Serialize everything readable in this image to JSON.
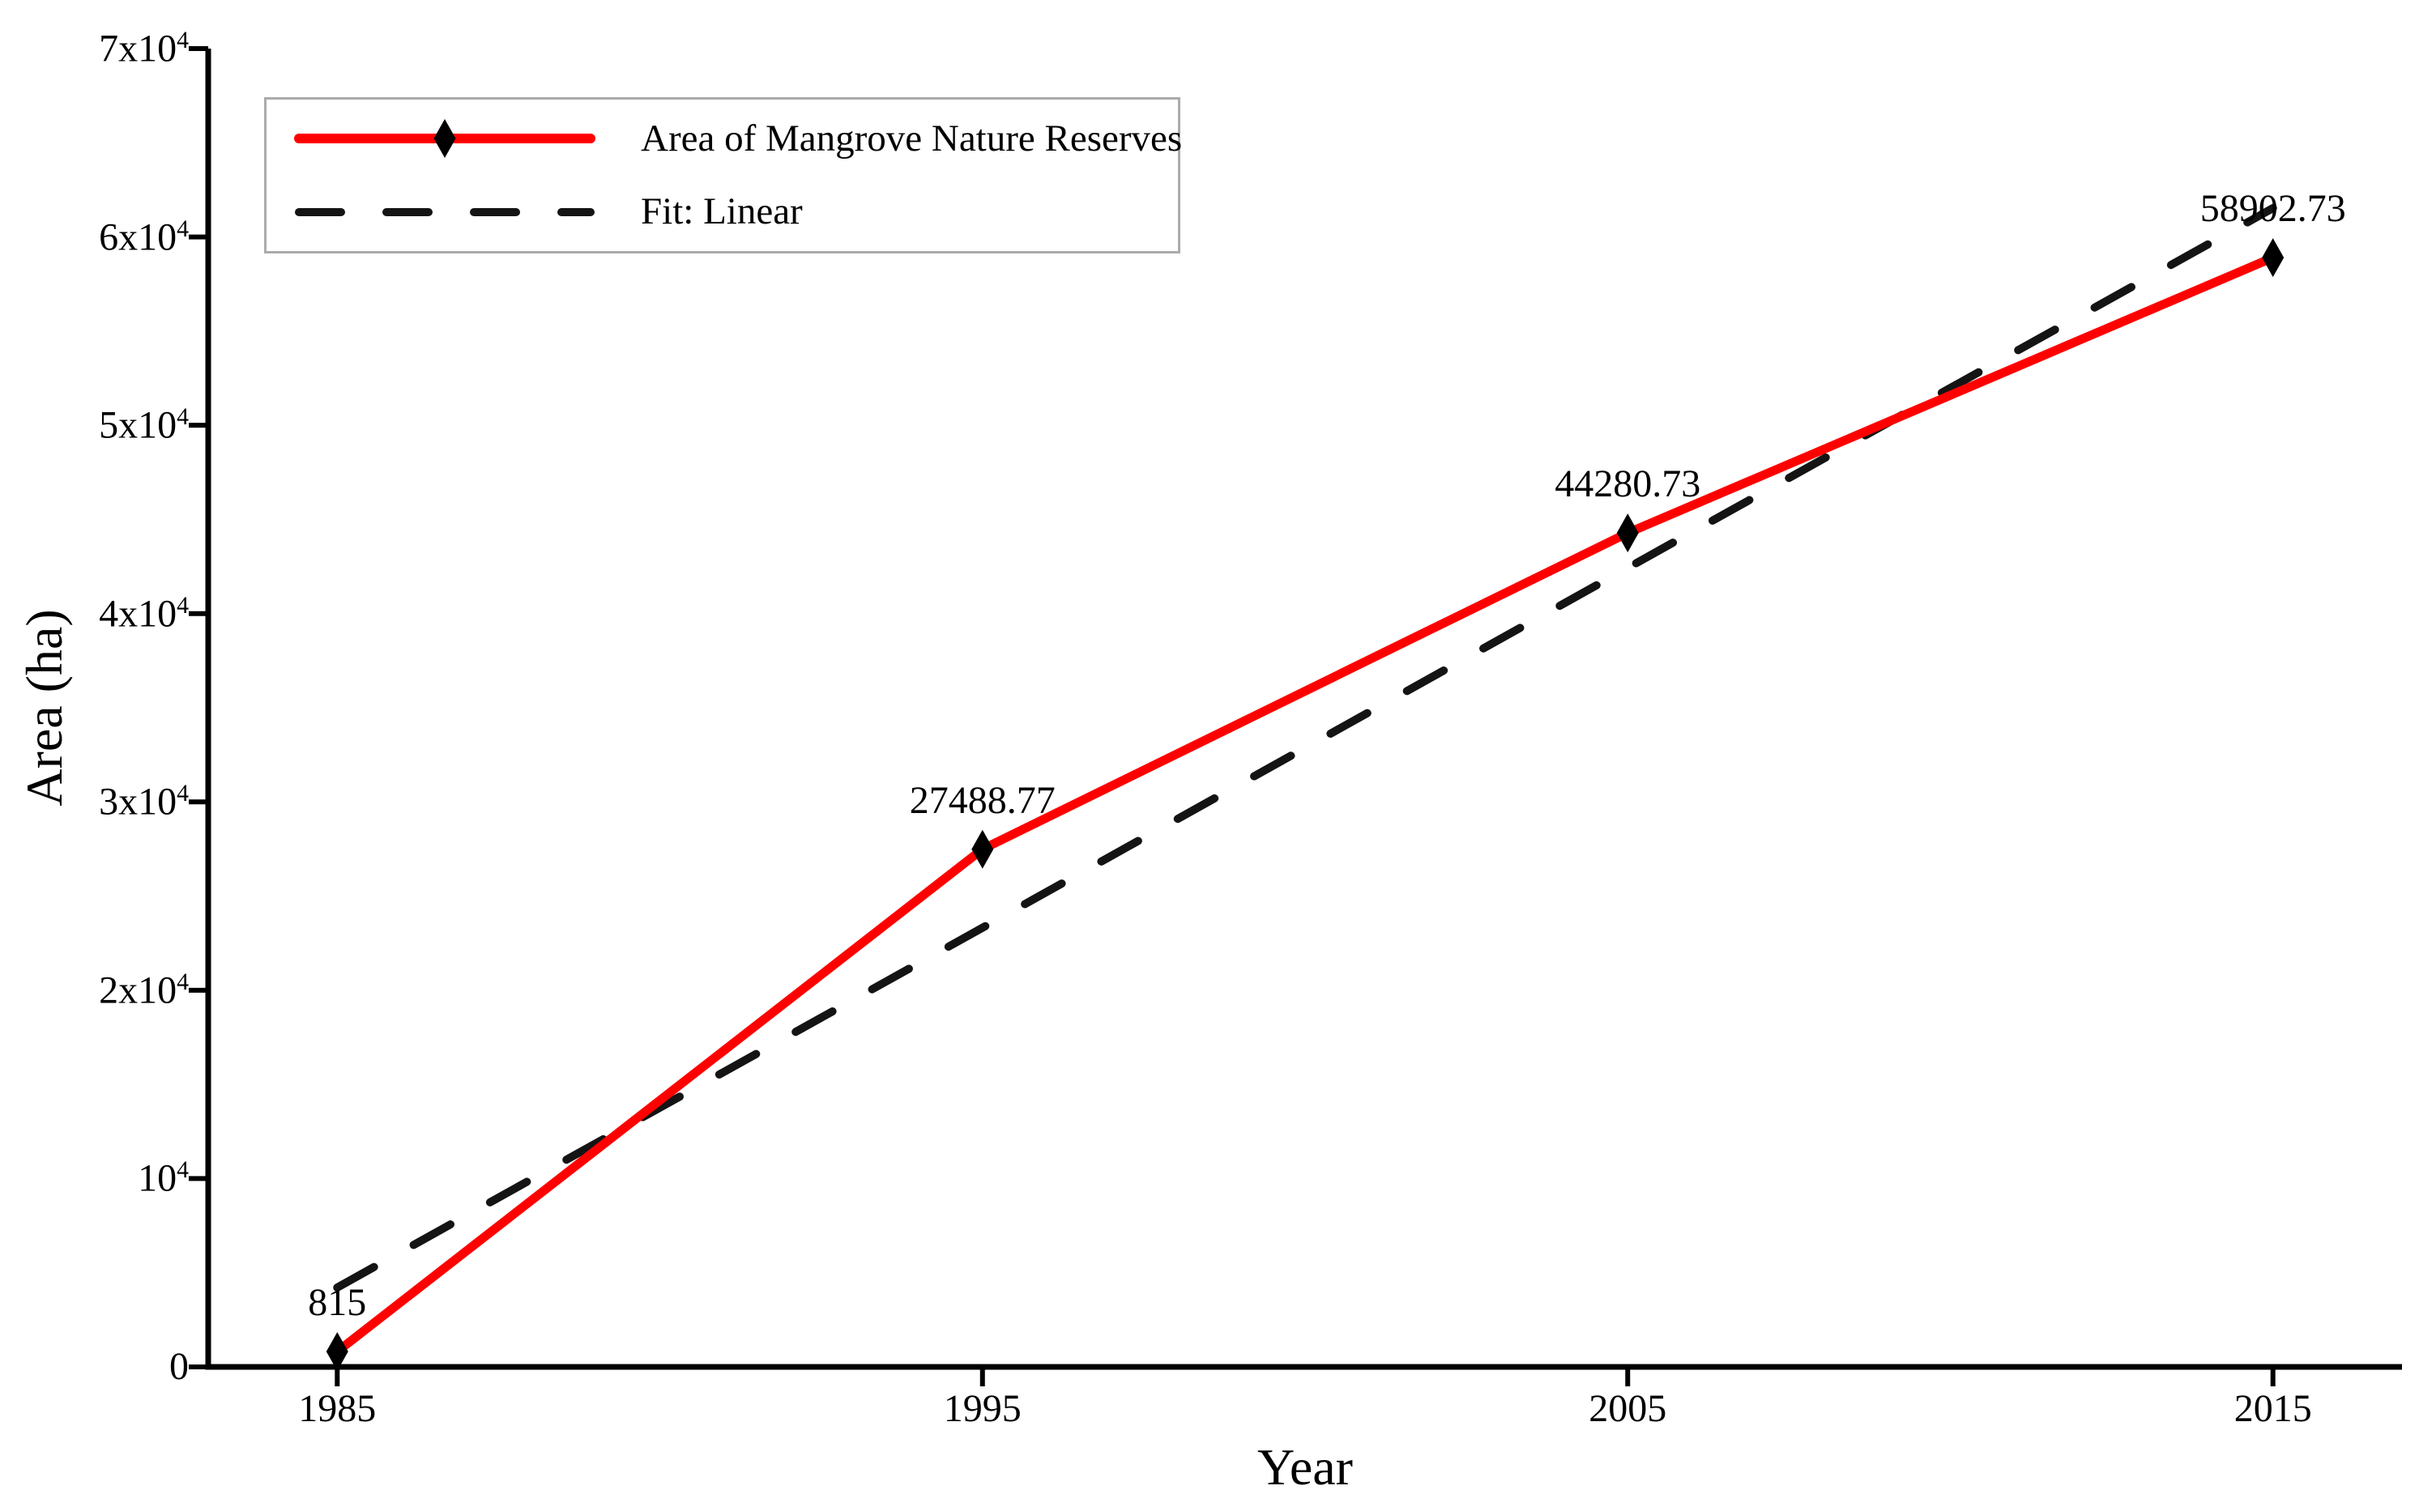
{
  "chart_data": {
    "type": "line",
    "title": "",
    "xlabel": "Year",
    "ylabel": "Area (ha)",
    "xlim": [
      1983,
      2017
    ],
    "ylim": [
      0,
      70000
    ],
    "grid": false,
    "legend_position": "top-left",
    "background_color": "#ffffff",
    "axis_color": "#000000",
    "legend_border_color": "#ababab",
    "x_ticks": [
      1985,
      1995,
      2005,
      2015
    ],
    "x_tick_labels": [
      "1985",
      "1995",
      "2005",
      "2015"
    ],
    "y_ticks": [
      0,
      10000,
      20000,
      30000,
      40000,
      50000,
      60000,
      70000
    ],
    "y_tick_labels": [
      "0",
      "10^4",
      "2x10^4",
      "3x10^4",
      "4x10^4",
      "5x10^4",
      "6x10^4",
      "7x10^4"
    ],
    "series": [
      {
        "name": "Area of Mangrove Nature Reserves",
        "x": [
          1985,
          1995,
          2005,
          2015
        ],
        "y": [
          815,
          27488.77,
          44280.73,
          58902.73
        ],
        "point_labels": [
          "815",
          "27488.77",
          "44280.73",
          "58902.73"
        ],
        "color": "#ff0000",
        "line_style": "solid",
        "marker": "thin-diamond",
        "marker_color": "#000000"
      },
      {
        "name": "Fit: Linear",
        "x": [
          1985,
          2015
        ],
        "y": [
          4213.5,
          61530.1
        ],
        "color": "#141414",
        "line_style": "dashed",
        "marker": "none"
      }
    ]
  }
}
